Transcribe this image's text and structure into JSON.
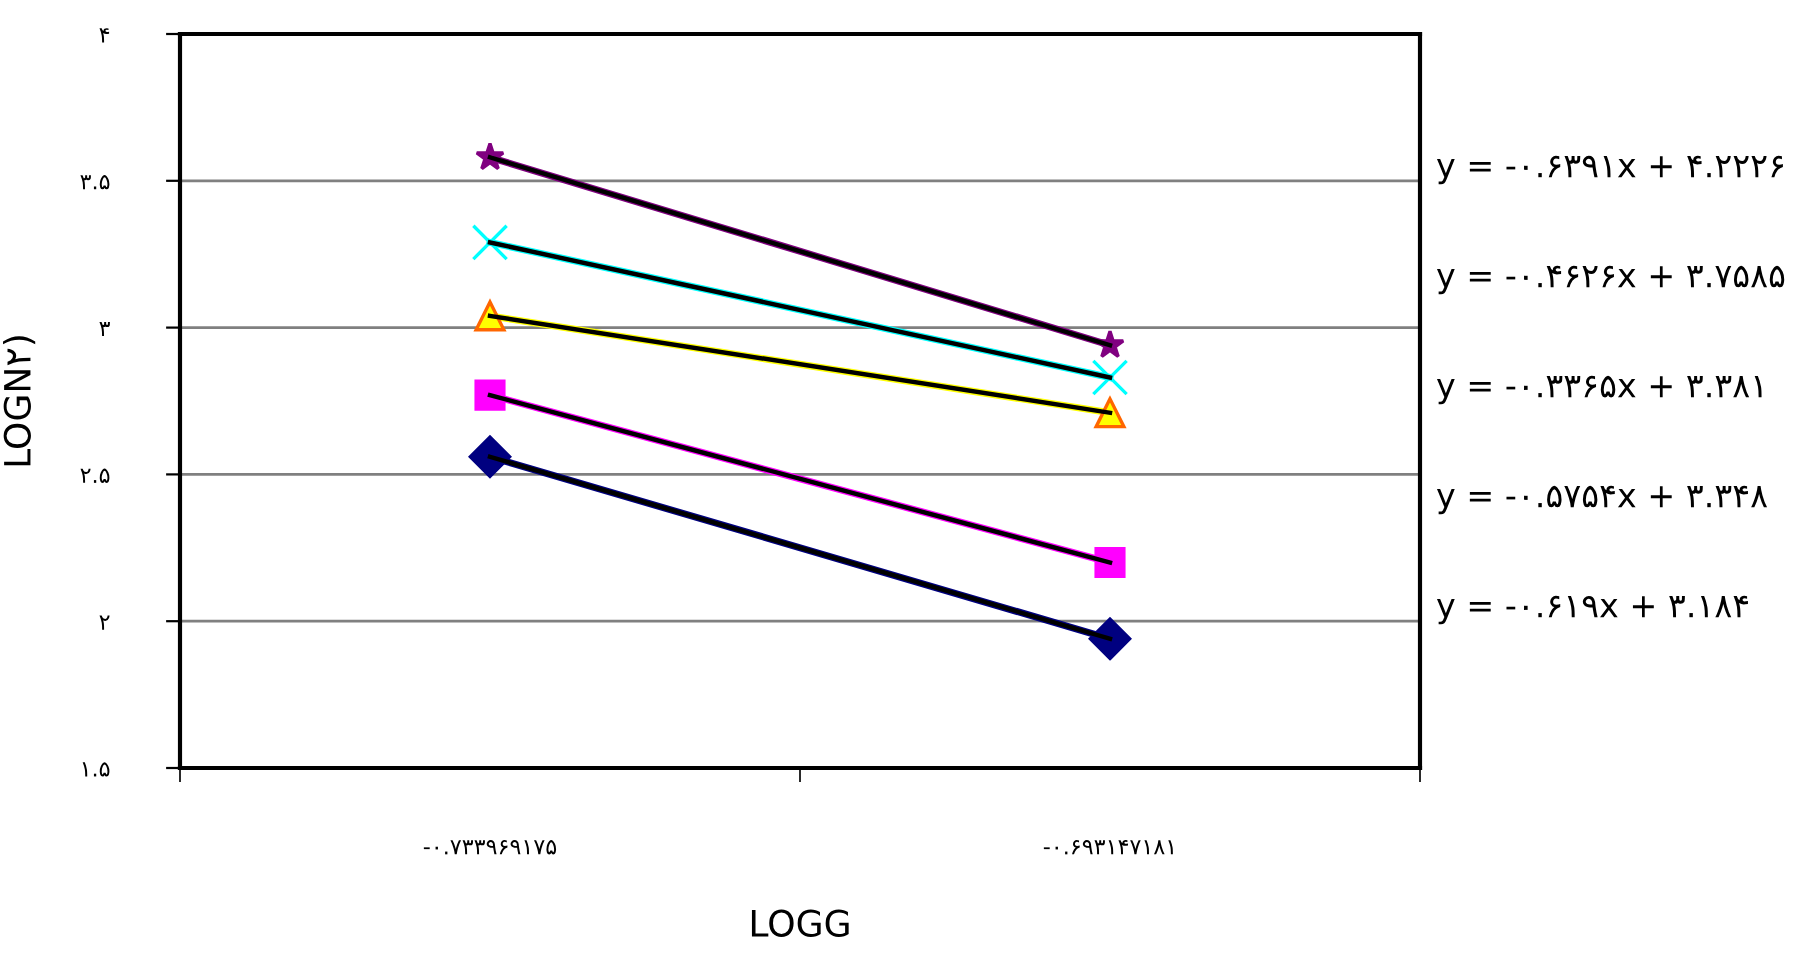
{
  "chart_data": {
    "type": "line",
    "xlabel": "LOGG",
    "ylabel": "LOGN۲)",
    "categories": [
      "-۰.۷۳۳۹۶۹۱۷۵",
      "-۰.۶۹۳۱۴۷۱۸۱"
    ],
    "series": [
      {
        "color": "#800080",
        "marker": "star",
        "values": [
          3.58,
          2.94
        ]
      },
      {
        "color": "#00ffff",
        "marker": "cross",
        "values": [
          3.29,
          2.83
        ]
      },
      {
        "color": "#ffff00",
        "marker": "triangle",
        "values": [
          3.04,
          2.71
        ]
      },
      {
        "color": "#ff00ff",
        "marker": "square",
        "values": [
          2.77,
          2.2
        ]
      },
      {
        "color": "#000080",
        "marker": "diamond",
        "values": [
          2.56,
          1.94
        ]
      }
    ],
    "ylim": [
      1.5,
      4
    ],
    "yticks": [
      {
        "value": 1.5,
        "label": "۱.۵"
      },
      {
        "value": 2,
        "label": "۲"
      },
      {
        "value": 2.5,
        "label": "۲.۵"
      },
      {
        "value": 3,
        "label": "۳"
      },
      {
        "value": 3.5,
        "label": "۳.۵"
      },
      {
        "value": 4,
        "label": "۴"
      }
    ],
    "grid": "y",
    "annotations": [
      "y = -۰.۶۳۹۱x + ۴.۲۲۲۶",
      "y = -۰.۴۶۲۶x + ۳.۷۵۸۵",
      "y = -۰.۳۳۶۵x + ۳.۳۸۱",
      "y = -۰.۵۷۵۴x + ۳.۳۴۸",
      "y = -۰.۶۱۹x + ۳.۱۸۴"
    ]
  }
}
